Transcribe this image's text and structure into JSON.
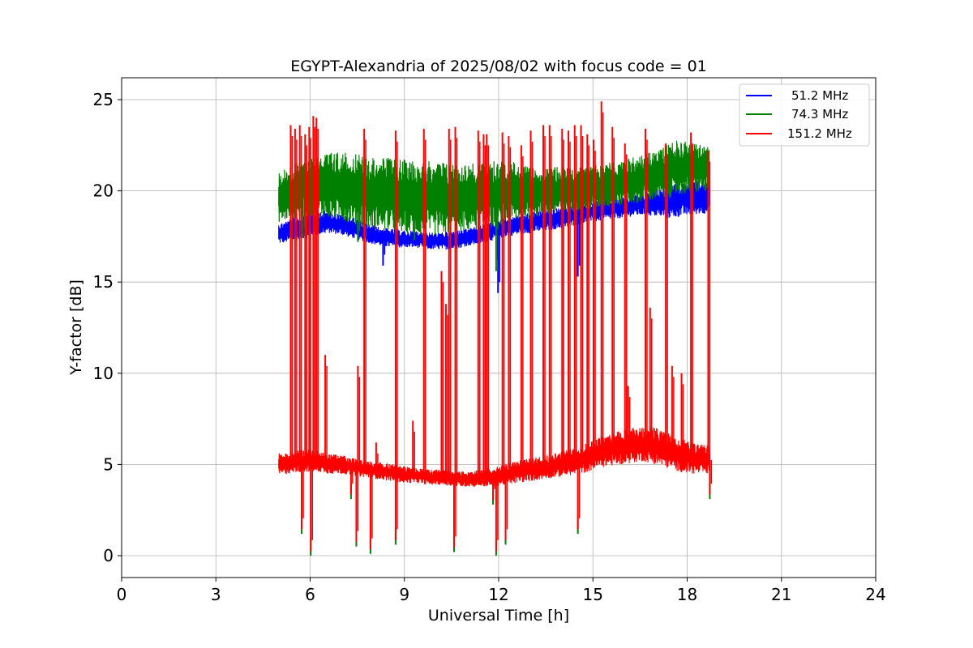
{
  "chart_data": {
    "type": "line",
    "title": "EGYPT-Alexandria of 2025/08/02 with focus code = 01",
    "xlabel": "Universal Time [h]",
    "ylabel": "Y-factor [dB]",
    "xlim": [
      0,
      24
    ],
    "ylim": [
      -1.2,
      26.2
    ],
    "xticks": [
      0,
      3,
      6,
      9,
      12,
      15,
      18,
      21,
      24
    ],
    "yticks": [
      0,
      5,
      10,
      15,
      20,
      25
    ],
    "grid": true,
    "legend_position": "top-right",
    "series": [
      {
        "name": "51.2 MHz",
        "color": "#0000ff",
        "x": [
          5.0,
          5.3,
          5.6,
          6.0,
          6.3,
          6.6,
          7.0,
          7.4,
          7.8,
          8.2,
          8.6,
          9.0,
          9.4,
          9.8,
          10.2,
          10.6,
          11.0,
          11.4,
          11.8,
          12.2,
          12.6,
          13.0,
          13.4,
          13.8,
          14.2,
          14.6,
          15.0,
          15.4,
          15.8,
          16.2,
          16.6,
          17.0,
          17.4,
          17.8,
          18.2,
          18.7
        ],
        "low": [
          17.1,
          17.2,
          17.3,
          17.5,
          17.6,
          17.7,
          17.6,
          17.4,
          17.2,
          17.0,
          16.9,
          16.9,
          16.9,
          16.8,
          16.8,
          16.8,
          17.0,
          17.1,
          17.3,
          17.5,
          17.6,
          17.7,
          17.8,
          17.9,
          18.0,
          18.2,
          18.3,
          18.4,
          18.5,
          18.6,
          18.7,
          18.6,
          18.5,
          18.6,
          18.7,
          18.8
        ],
        "high": [
          18.2,
          18.4,
          18.6,
          18.8,
          18.9,
          18.9,
          18.7,
          18.5,
          18.2,
          18.0,
          17.9,
          17.8,
          17.8,
          17.7,
          17.7,
          17.8,
          17.9,
          18.1,
          18.3,
          18.5,
          18.7,
          18.8,
          18.9,
          19.0,
          19.1,
          19.3,
          19.4,
          19.5,
          19.6,
          19.7,
          19.8,
          20.1,
          20.3,
          20.4,
          20.5,
          20.6
        ]
      },
      {
        "name": "74.3 MHz",
        "color": "#008000",
        "x": [
          5.0,
          5.3,
          5.6,
          6.0,
          6.3,
          6.6,
          7.0,
          7.4,
          7.8,
          8.2,
          8.6,
          9.0,
          9.4,
          9.8,
          10.2,
          10.6,
          11.0,
          11.4,
          11.8,
          12.2,
          12.6,
          13.0,
          13.4,
          13.8,
          14.2,
          14.6,
          15.0,
          15.4,
          15.8,
          16.2,
          16.6,
          17.0,
          17.4,
          17.8,
          18.2,
          18.7
        ],
        "low": [
          18.3,
          18.4,
          18.5,
          18.6,
          18.6,
          18.5,
          18.4,
          18.2,
          18.0,
          17.9,
          17.8,
          17.7,
          17.6,
          17.6,
          17.6,
          17.7,
          17.8,
          17.9,
          18.0,
          18.2,
          18.3,
          18.5,
          18.6,
          18.7,
          18.8,
          18.9,
          19.0,
          19.1,
          19.2,
          19.3,
          19.4,
          19.5,
          19.6,
          19.8,
          19.9,
          20.0
        ],
        "high": [
          21.0,
          21.3,
          21.6,
          21.8,
          22.0,
          22.1,
          22.1,
          22.0,
          21.9,
          21.8,
          21.8,
          21.7,
          21.7,
          21.6,
          21.6,
          21.5,
          21.5,
          21.5,
          21.6,
          21.6,
          21.6,
          21.2,
          21.2,
          21.3,
          21.3,
          21.3,
          21.4,
          21.5,
          21.6,
          21.8,
          22.0,
          22.2,
          22.6,
          22.8,
          22.6,
          22.4
        ]
      },
      {
        "name": "151.2 MHz",
        "color": "#ff0000",
        "x": [
          5.0,
          5.3,
          5.6,
          6.0,
          6.3,
          6.6,
          7.0,
          7.4,
          7.8,
          8.2,
          8.6,
          9.0,
          9.4,
          9.8,
          10.2,
          10.6,
          11.0,
          11.4,
          11.8,
          12.2,
          12.6,
          13.0,
          13.4,
          13.8,
          14.2,
          14.6,
          15.0,
          15.4,
          15.8,
          16.2,
          16.6,
          17.0,
          17.4,
          17.8,
          18.2,
          18.7
        ],
        "low": [
          4.4,
          4.5,
          4.6,
          4.6,
          4.6,
          4.5,
          4.5,
          4.4,
          4.3,
          4.2,
          4.1,
          4.0,
          4.0,
          3.9,
          3.9,
          3.8,
          3.8,
          3.8,
          3.8,
          3.9,
          4.0,
          4.1,
          4.2,
          4.3,
          4.4,
          4.5,
          4.7,
          4.9,
          5.0,
          5.1,
          5.2,
          5.0,
          4.8,
          4.6,
          4.5,
          4.5
        ],
        "high": [
          5.6,
          5.7,
          5.8,
          5.8,
          5.7,
          5.6,
          5.5,
          5.3,
          5.2,
          5.1,
          5.0,
          4.9,
          4.8,
          4.7,
          4.7,
          4.6,
          4.6,
          4.7,
          4.8,
          5.0,
          5.2,
          5.3,
          5.5,
          5.6,
          5.8,
          6.0,
          6.3,
          6.6,
          6.8,
          7.0,
          7.1,
          7.0,
          6.7,
          6.4,
          6.2,
          6.0
        ]
      }
    ],
    "spikes": {
      "red_up": [
        [
          5.38,
          23.6
        ],
        [
          5.52,
          23.4
        ],
        [
          5.67,
          23.6
        ],
        [
          5.84,
          23.1
        ],
        [
          5.97,
          23.5
        ],
        [
          6.1,
          24.1
        ],
        [
          6.2,
          24.0
        ],
        [
          7.72,
          23.4
        ],
        [
          8.72,
          23.3
        ],
        [
          9.62,
          23.4
        ],
        [
          10.42,
          23.4
        ],
        [
          10.62,
          23.5
        ],
        [
          11.35,
          23.3
        ],
        [
          11.52,
          23.1
        ],
        [
          11.62,
          23.1
        ],
        [
          12.12,
          23.2
        ],
        [
          12.32,
          23.0
        ],
        [
          12.72,
          22.5
        ],
        [
          13.02,
          23.3
        ],
        [
          13.42,
          23.6
        ],
        [
          13.62,
          23.6
        ],
        [
          14.02,
          23.4
        ],
        [
          14.22,
          23.3
        ],
        [
          14.42,
          23.6
        ],
        [
          14.62,
          23.6
        ],
        [
          14.82,
          23.1
        ],
        [
          15.02,
          22.8
        ],
        [
          15.27,
          24.9
        ],
        [
          15.62,
          23.5
        ],
        [
          16.02,
          22.6
        ],
        [
          16.67,
          23.4
        ],
        [
          17.32,
          22.6
        ],
        [
          18.12,
          23.2
        ],
        [
          18.67,
          22.2
        ],
        [
          6.48,
          11.0
        ],
        [
          7.52,
          10.4
        ],
        [
          8.1,
          6.2
        ],
        [
          9.27,
          7.4
        ],
        [
          10.18,
          15.6
        ],
        [
          10.32,
          13.8
        ],
        [
          16.12,
          9.3
        ],
        [
          17.52,
          10.4
        ],
        [
          17.82,
          10.0
        ],
        [
          16.82,
          13.6
        ]
      ],
      "red_down": [
        [
          5.73,
          1.2
        ],
        [
          6.02,
          0.0
        ],
        [
          7.47,
          0.5
        ],
        [
          7.92,
          0.1
        ],
        [
          8.72,
          0.6
        ],
        [
          10.58,
          0.2
        ],
        [
          11.92,
          0.0
        ],
        [
          12.22,
          0.6
        ],
        [
          14.52,
          1.2
        ],
        [
          11.82,
          2.8
        ],
        [
          7.3,
          3.1
        ],
        [
          18.72,
          3.1
        ]
      ],
      "green_down": [
        [
          7.52,
          17.2
        ],
        [
          11.92,
          15.6
        ],
        [
          5.77,
          17.4
        ],
        [
          9.32,
          17.3
        ]
      ],
      "blue_down": [
        [
          11.98,
          14.4
        ],
        [
          14.52,
          15.3
        ],
        [
          8.32,
          15.9
        ]
      ]
    }
  }
}
